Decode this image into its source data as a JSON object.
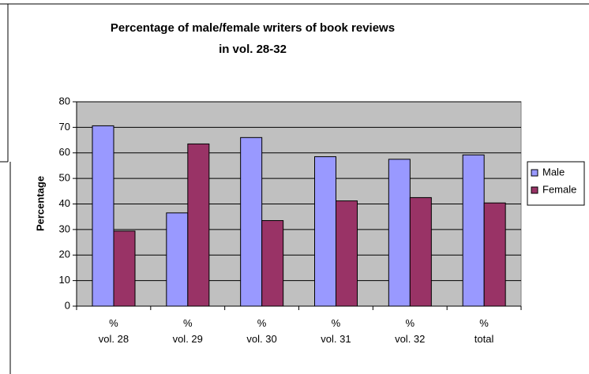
{
  "chart_data": {
    "type": "bar",
    "title": "Percentage of male/female writers of book reviews\nin vol. 28-32",
    "ylabel": "Percentage",
    "categories": [
      "%\nvol. 28",
      "%\nvol. 29",
      "%\nvol. 30",
      "%\nvol. 31",
      "%\nvol. 32",
      "%\ntotal"
    ],
    "series": [
      {
        "name": "Male",
        "color": "#9999ff",
        "values": [
          70.6,
          36.5,
          66,
          58.5,
          57.5,
          59.2
        ]
      },
      {
        "name": "Female",
        "color": "#993366",
        "values": [
          29.4,
          63.5,
          33.5,
          41.2,
          42.5,
          40.4
        ]
      }
    ],
    "ylim": [
      0,
      80
    ],
    "yticks": [
      0,
      10,
      20,
      30,
      40,
      50,
      60,
      70,
      80
    ],
    "grid": true,
    "legend": "right"
  }
}
